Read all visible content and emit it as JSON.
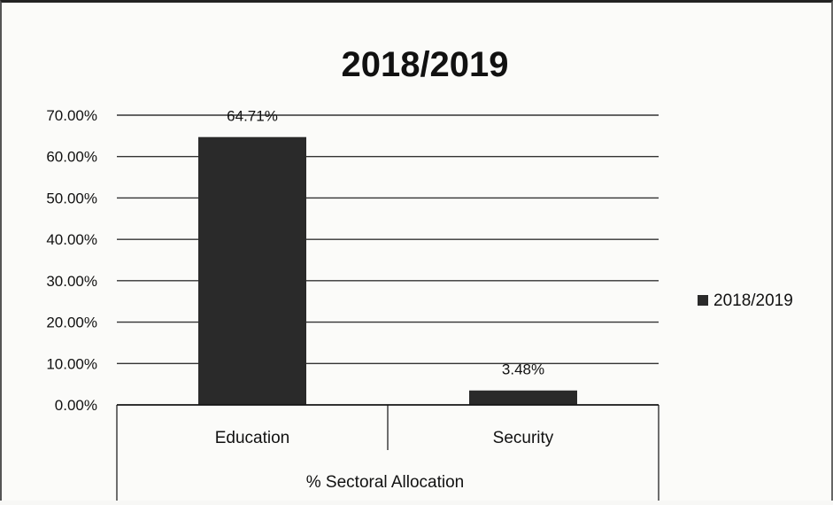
{
  "chart_data": {
    "type": "bar",
    "title": "2018/2019",
    "categories": [
      "Education",
      "Security"
    ],
    "series": [
      {
        "name": "2018/2019",
        "values": [
          64.71,
          3.48
        ],
        "labels": [
          "64.71%",
          "3.48%"
        ]
      }
    ],
    "xlabel": "% Sectoral Allocation",
    "ylabel": "",
    "ylim": [
      0,
      70
    ],
    "yticks": [
      "0.00%",
      "10.00%",
      "20.00%",
      "30.00%",
      "40.00%",
      "50.00%",
      "60.00%",
      "70.00%"
    ],
    "grid": true,
    "legend": "right",
    "colors": {
      "bar": "#2a2a2a",
      "grid": "#333333"
    }
  }
}
